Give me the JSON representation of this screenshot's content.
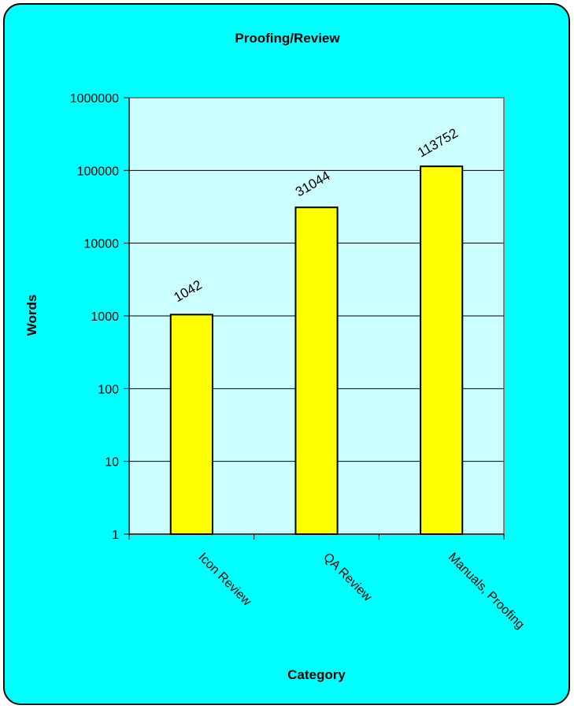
{
  "chart_data": {
    "type": "bar",
    "title": "Proofing/Review",
    "xlabel": "Category",
    "ylabel": "Words",
    "categories": [
      "Icon Review",
      "QA Review",
      "Manuals, Proofing"
    ],
    "values": [
      1042,
      31044,
      113752
    ],
    "data_labels": [
      "1042",
      "31044",
      "113752"
    ],
    "yscale": "log",
    "ylim": [
      1,
      1000000
    ],
    "yticks": [
      "1",
      "10",
      "100",
      "1000",
      "10000",
      "100000",
      "1000000"
    ],
    "grid": true,
    "legend": "none",
    "colors": {
      "frame_background": "#00FFFF",
      "plot_background": "#CCFFFF",
      "bar_fill": "#FFFF00",
      "bar_stroke": "#000000",
      "gridline": "#000000",
      "plot_border": "#808080"
    }
  }
}
